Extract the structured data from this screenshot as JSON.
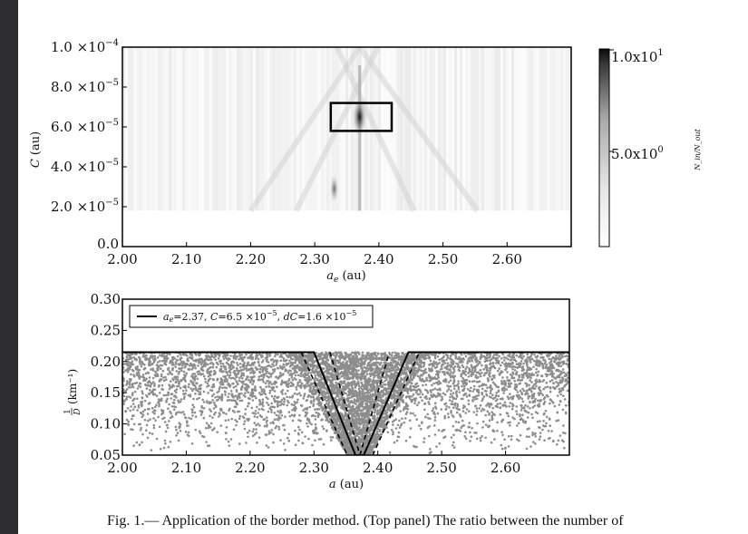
{
  "chart_data": [
    {
      "type": "heatmap",
      "title": "",
      "xlabel": "a_e (au)",
      "ylabel": "C (au)",
      "xlim": [
        2.0,
        2.7
      ],
      "ylim": [
        0,
        0.0001
      ],
      "x_ticks": [
        2.0,
        2.1,
        2.2,
        2.3,
        2.4,
        2.5,
        2.6
      ],
      "x_tick_labels": [
        "2.00",
        "2.10",
        "2.20",
        "2.30",
        "2.40",
        "2.50",
        "2.60"
      ],
      "y_ticks": [
        0.0,
        2e-05,
        4e-05,
        6e-05,
        8e-05,
        0.0001
      ],
      "y_tick_labels": [
        "0.0",
        "2.0 ×10⁻⁵",
        "4.0 ×10⁻⁵",
        "6.0 ×10⁻⁵",
        "8.0 ×10⁻⁵",
        "1.0 ×10⁻⁴"
      ],
      "data_region_c_min": 1.8e-05,
      "colorbar": {
        "min": 0,
        "max": 10,
        "tick_labels": [
          "1.0x10¹",
          "5.0x10⁰"
        ],
        "label": "N_in/N_out"
      },
      "highlight_box": {
        "x": [
          2.325,
          2.42
        ],
        "y": [
          5.8e-05,
          7.2e-05
        ]
      },
      "peak": {
        "a_e": 2.37,
        "C": 6.5e-05
      },
      "grid": false
    },
    {
      "type": "scatter",
      "title": "",
      "xlabel": "a (au)",
      "ylabel": "1/D (km⁻¹)",
      "xlim": [
        2.0,
        2.7
      ],
      "ylim": [
        0.05,
        0.3
      ],
      "x_ticks": [
        2.0,
        2.1,
        2.2,
        2.3,
        2.4,
        2.5,
        2.6
      ],
      "x_tick_labels": [
        "2.00",
        "2.10",
        "2.20",
        "2.30",
        "2.40",
        "2.50",
        "2.60"
      ],
      "y_ticks": [
        0.05,
        0.1,
        0.15,
        0.2,
        0.25,
        0.3
      ],
      "y_tick_labels": [
        "0.05",
        "0.10",
        "0.15",
        "0.20",
        "0.25",
        "0.30"
      ],
      "points_upper_limit": 0.215,
      "series": [
        {
          "name": "a_e=2.37, C=6.5 ×10⁻⁵, dC=1.6 ×10⁻⁵",
          "a_e": 2.37,
          "C": 6.5e-05,
          "dC": 1.6e-05
        }
      ],
      "legend_position": "top-left",
      "grid": false
    }
  ],
  "caption": "Fig. 1.— Application of the border method. (Top panel) The ratio between the number of",
  "labels": {
    "colorbar_label": "N_in/N_out",
    "top_xlabel_var": "a",
    "top_xlabel_sub": "e",
    "top_xlabel_unit": " (au)",
    "top_ylabel_var": "C",
    "top_ylabel_unit": " (au)",
    "bottom_xlabel_var": "a",
    "bottom_xlabel_unit": " (au)",
    "bottom_ylabel_frac_num": "1",
    "bottom_ylabel_frac_den": "D",
    "bottom_ylabel_unit": " (km⁻¹)",
    "legend_text": "a_e=2.37, C=6.5 ×10⁻⁵, dC=1.6 ×10⁻⁵"
  },
  "top_y_tick_mantissas": [
    "0.0",
    "2.0 ×10",
    "4.0 ×10",
    "6.0 ×10",
    "8.0 ×10",
    "1.0 ×10"
  ],
  "top_y_tick_exponents": [
    "",
    "−5",
    "−5",
    "−5",
    "−5",
    "−4"
  ],
  "colorbar_tick_mantissas": [
    "1.0x10",
    "5.0x10"
  ],
  "colorbar_tick_exponents": [
    "1",
    "0"
  ],
  "legend_parts": {
    "a_var": "a",
    "a_sub": "e",
    "a_val": "=2.37, ",
    "c_var": "C",
    "c_val": "=6.5 ×10",
    "c_exp": "−5",
    "sep": ", ",
    "dc_var": "dC",
    "dc_val": "=1.6 ×10",
    "dc_exp": "−5"
  }
}
